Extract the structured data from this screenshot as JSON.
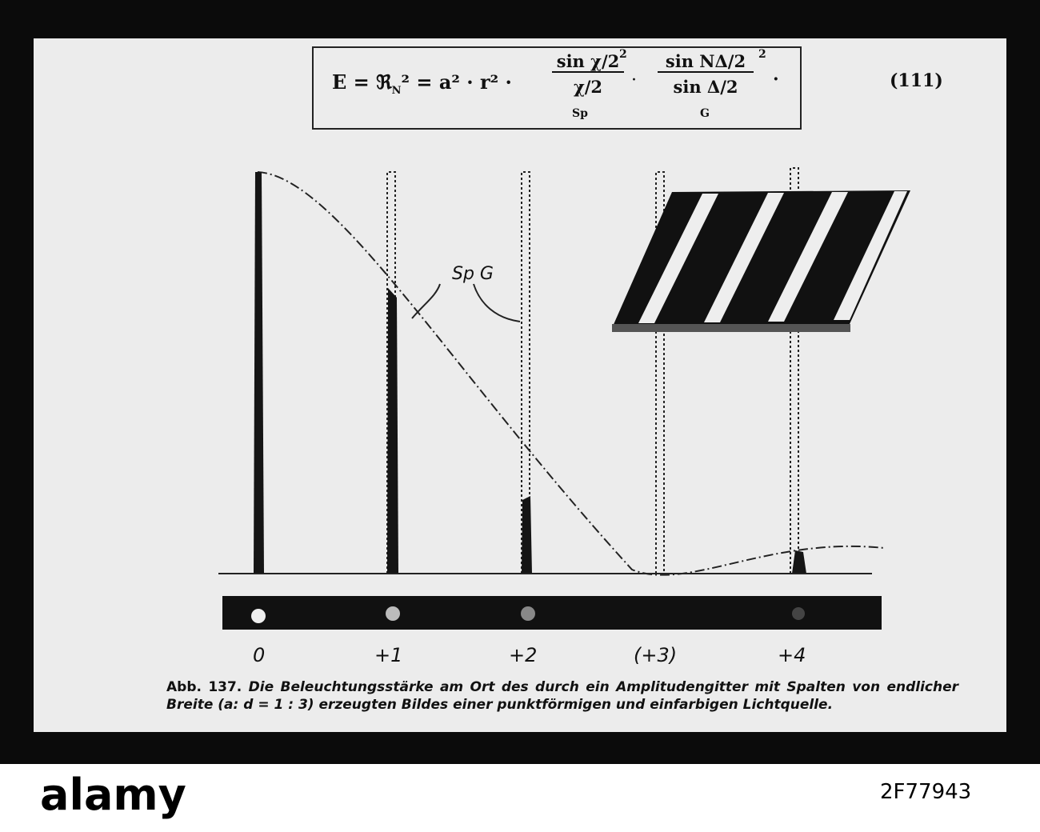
{
  "formula": {
    "lead": "E = ℜ",
    "lead_sub": "N",
    "lead_rest": "² = a² · r² ·",
    "frac1_num": "sin χ/2",
    "frac1_den": "χ/2",
    "frac1_label": "Sp",
    "frac2_num": "sin NΔ/2",
    "frac2_den": "sin Δ/2",
    "frac2_label": "G",
    "exponent": "2",
    "trail": "·",
    "number": "(111)"
  },
  "diagram": {
    "curve_label": "Sp G",
    "orders": [
      "0",
      "+1",
      "+2",
      "(+3)",
      "+4"
    ]
  },
  "caption": {
    "label": "Abb. 137.",
    "text": "Die Beleuchtungsstärke am Ort des durch ein Amplitudengitter mit Spalten von endlicher Breite (a: d = 1 : 3) erzeugten Bildes einer punktförmigen und einfarbigen Lichtquelle."
  },
  "watermark": {
    "brand": "alamy",
    "id": "2F77943"
  }
}
